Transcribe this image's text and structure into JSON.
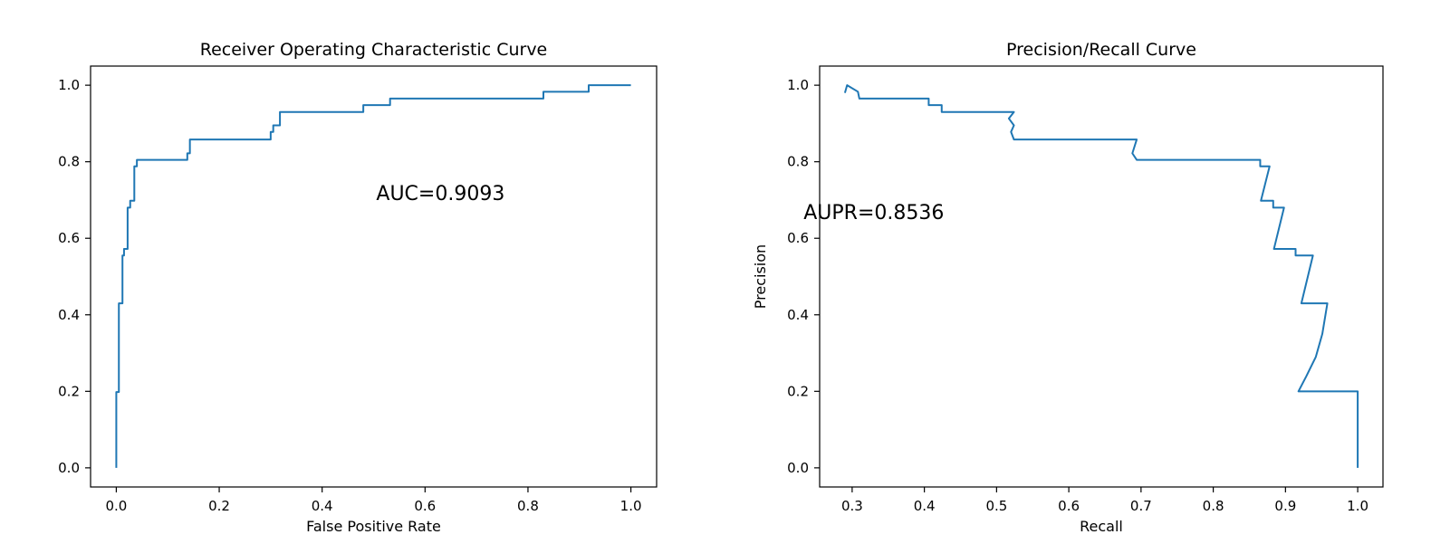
{
  "chart_data": [
    {
      "type": "line",
      "title": "Receiver Operating Characteristic Curve",
      "xlabel": "False Positive Rate",
      "ylabel": "",
      "xlim": [
        -0.05,
        1.05
      ],
      "ylim": [
        -0.05,
        1.05
      ],
      "xticks": [
        "0.0",
        "0.2",
        "0.4",
        "0.6",
        "0.8",
        "1.0"
      ],
      "yticks": [
        "0.0",
        "0.2",
        "0.4",
        "0.6",
        "0.8",
        "1.0"
      ],
      "annotation": "AUC=0.9093",
      "annotation_xy": [
        0.63,
        0.7
      ],
      "line_color": "#1f77b4",
      "grid": false,
      "series": [
        {
          "x": [
            0.0,
            0.0,
            0.005,
            0.005,
            0.012,
            0.012,
            0.015,
            0.015,
            0.022,
            0.022,
            0.027,
            0.027,
            0.035,
            0.035,
            0.04,
            0.04,
            0.048,
            0.048,
            0.138,
            0.138,
            0.143,
            0.143,
            0.3,
            0.3,
            0.305,
            0.305,
            0.318,
            0.318,
            0.48,
            0.48,
            0.532,
            0.532,
            0.83,
            0.83,
            0.918,
            0.918,
            1.0
          ],
          "y": [
            0.0,
            0.198,
            0.198,
            0.43,
            0.43,
            0.555,
            0.555,
            0.572,
            0.572,
            0.68,
            0.68,
            0.698,
            0.698,
            0.788,
            0.788,
            0.805,
            0.805,
            0.805,
            0.805,
            0.822,
            0.822,
            0.858,
            0.858,
            0.878,
            0.878,
            0.895,
            0.895,
            0.93,
            0.93,
            0.948,
            0.948,
            0.965,
            0.965,
            0.983,
            0.983,
            1.0,
            1.0
          ]
        }
      ]
    },
    {
      "type": "line",
      "title": "Precision/Recall Curve",
      "xlabel": "Recall",
      "ylabel": "Precision",
      "xlim": [
        0.255,
        1.035
      ],
      "ylim": [
        -0.05,
        1.05
      ],
      "xticks": [
        "0.3",
        "0.4",
        "0.5",
        "0.6",
        "0.7",
        "0.8",
        "0.9",
        "1.0"
      ],
      "yticks": [
        "0.0",
        "0.2",
        "0.4",
        "0.6",
        "0.8",
        "1.0"
      ],
      "annotation": "AUPR=0.8536",
      "annotation_xy": [
        0.33,
        0.65
      ],
      "line_color": "#1f77b4",
      "grid": false,
      "series": [
        {
          "x": [
            0.29,
            0.293,
            0.308,
            0.31,
            0.406,
            0.406,
            0.424,
            0.424,
            0.524,
            0.517,
            0.524,
            0.52,
            0.524,
            0.524,
            0.694,
            0.688,
            0.694,
            0.694,
            0.865,
            0.865,
            0.878,
            0.866,
            0.883,
            0.883,
            0.898,
            0.884,
            0.914,
            0.914,
            0.938,
            0.922,
            0.958,
            0.951,
            0.942,
            0.929,
            0.918,
            1.0,
            1.0
          ],
          "y": [
            0.98,
            1.0,
            0.983,
            0.965,
            0.965,
            0.948,
            0.948,
            0.93,
            0.93,
            0.913,
            0.895,
            0.878,
            0.858,
            0.858,
            0.858,
            0.822,
            0.805,
            0.805,
            0.805,
            0.788,
            0.788,
            0.698,
            0.698,
            0.68,
            0.68,
            0.572,
            0.572,
            0.555,
            0.555,
            0.43,
            0.43,
            0.35,
            0.29,
            0.24,
            0.2,
            0.2,
            0.0
          ]
        }
      ]
    }
  ]
}
